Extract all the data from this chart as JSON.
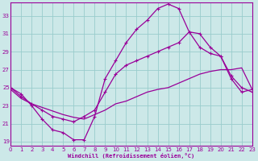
{
  "xlabel": "Windchill (Refroidissement éolien,°C)",
  "bg_color": "#cce8e8",
  "grid_color": "#99cccc",
  "line_color": "#990099",
  "xlim": [
    0,
    23
  ],
  "ylim": [
    18.5,
    34.5
  ],
  "yticks": [
    19,
    21,
    23,
    25,
    27,
    29,
    31,
    33
  ],
  "xticks": [
    0,
    1,
    2,
    3,
    4,
    5,
    6,
    7,
    8,
    9,
    10,
    11,
    12,
    13,
    14,
    15,
    16,
    17,
    18,
    19,
    20,
    21,
    22,
    23
  ],
  "curve1_x": [
    0,
    1,
    2,
    3,
    4,
    5,
    6,
    7,
    8,
    9,
    10,
    11,
    12,
    13,
    14,
    15,
    16,
    17,
    18,
    19,
    20,
    21,
    22,
    23
  ],
  "curve1_y": [
    25.0,
    24.3,
    23.0,
    21.5,
    20.3,
    20.0,
    19.2,
    19.2,
    21.8,
    26.0,
    28.0,
    30.0,
    31.5,
    32.5,
    33.8,
    34.3,
    33.8,
    31.2,
    29.5,
    28.8,
    28.5,
    26.3,
    25.0,
    24.5
  ],
  "curve2_x": [
    0,
    1,
    2,
    3,
    4,
    5,
    6,
    7,
    8,
    9,
    10,
    11,
    12,
    13,
    14,
    15,
    16,
    17,
    18,
    19,
    20,
    21,
    22,
    23
  ],
  "curve2_y": [
    25.0,
    24.0,
    23.2,
    22.5,
    21.8,
    21.5,
    21.2,
    21.8,
    22.5,
    24.5,
    26.5,
    27.5,
    28.0,
    28.5,
    29.0,
    29.5,
    30.0,
    31.2,
    31.0,
    29.5,
    28.5,
    26.0,
    24.5,
    24.8
  ],
  "curve3_x": [
    0,
    1,
    2,
    3,
    4,
    5,
    6,
    7,
    8,
    9,
    10,
    11,
    12,
    13,
    14,
    15,
    16,
    17,
    18,
    19,
    20,
    21,
    22,
    23
  ],
  "curve3_y": [
    24.8,
    23.8,
    23.2,
    22.8,
    22.4,
    22.0,
    21.7,
    21.5,
    22.0,
    22.5,
    23.2,
    23.5,
    24.0,
    24.5,
    24.8,
    25.0,
    25.5,
    26.0,
    26.5,
    26.8,
    27.0,
    27.0,
    27.2,
    24.8
  ]
}
